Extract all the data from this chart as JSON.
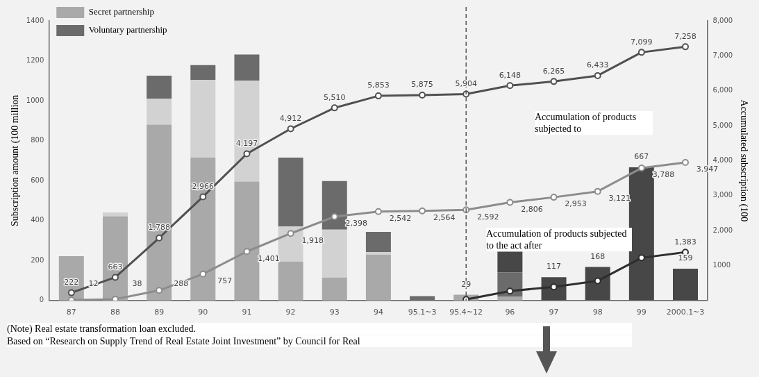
{
  "chart_data": {
    "type": "bar",
    "stacked": true,
    "marker": "circle",
    "legend": "top left",
    "ylabel": "Subscription amount (100 million",
    "y2label": "Accumulated subscription (100",
    "categories": [
      "87",
      "88",
      "89",
      "90",
      "91",
      "92",
      "93",
      "94",
      "95.1~3",
      "95.4~12",
      "96",
      "97",
      "98",
      "99",
      "2000.1~3"
    ],
    "ylim": [
      0,
      1400
    ],
    "yticks": [
      0,
      200,
      400,
      600,
      800,
      1000,
      1200,
      1400
    ],
    "y2lim": [
      0,
      8000
    ],
    "y2ticks": [
      {
        "value": 1000,
        "label": "1000"
      },
      {
        "value": 2000,
        "label": "2,000"
      },
      {
        "value": 3000,
        "label": "3,000"
      },
      {
        "value": 4000,
        "label": "4,000"
      },
      {
        "value": 5000,
        "label": "5,000"
      },
      {
        "value": 6000,
        "label": "6,000"
      },
      {
        "value": 7000,
        "label": "7,000"
      },
      {
        "value": 8000,
        "label": "8,000"
      }
    ],
    "series": [
      {
        "color": "#a9a9a9",
        "values": [
          222,
          422,
          880,
          715,
          595,
          195,
          115,
          230,
          null,
          29,
          20,
          null,
          null,
          null,
          null
        ],
        "value_labels": [
          null,
          null,
          null,
          null,
          null,
          null,
          null,
          null,
          null,
          "29",
          null,
          null,
          null,
          null,
          null
        ],
        "name": "Secret partnership"
      },
      {
        "color": "#d2d2d2",
        "values": [
          null,
          19,
          130,
          390,
          505,
          175,
          240,
          12,
          null,
          null,
          null,
          null,
          null,
          null,
          null
        ]
      },
      {
        "color": "#6b6b6b",
        "values": [
          null,
          null,
          115,
          73,
          131,
          345,
          243,
          101,
          22,
          null,
          120,
          null,
          null,
          null,
          null
        ],
        "name": "Voluntary partnership"
      },
      {
        "color": "#474747",
        "values": [
          null,
          null,
          null,
          null,
          null,
          null,
          null,
          null,
          null,
          null,
          104,
          117,
          168,
          667,
          159
        ],
        "value_labels": [
          null,
          null,
          null,
          null,
          null,
          null,
          null,
          null,
          null,
          null,
          null,
          "117",
          "168",
          "667",
          "159"
        ]
      },
      {
        "type": "line",
        "axis": "y2",
        "color": "#505050",
        "values": [
          222,
          663,
          1788,
          2966,
          4197,
          4912,
          5510,
          5853,
          5875,
          5904,
          6148,
          6265,
          6433,
          7099,
          7258
        ],
        "value_labels": [
          "222",
          "663",
          "1,788",
          "2,966",
          "4,197",
          "4,912",
          "5,510",
          "5,853",
          "5,875",
          "5,904",
          "6,148",
          "6,265",
          "6,433",
          "7,099",
          "7,258"
        ]
      },
      {
        "type": "line",
        "axis": "y2",
        "color": "#8c8c8c",
        "values": [
          12,
          38,
          288,
          757,
          1401,
          1918,
          2398,
          2542,
          2564,
          2592,
          2806,
          2953,
          3121,
          3788,
          3947
        ],
        "value_labels": [
          "12",
          "38",
          "288",
          "757",
          "1,401",
          "1,918",
          "2,398",
          "2,542",
          "2,564",
          "2,592",
          "2,806",
          "2,953",
          "3,121",
          "3,788",
          "3,947"
        ]
      },
      {
        "type": "line",
        "axis": "y2",
        "color": "#2e2e2e",
        "values": [
          null,
          null,
          null,
          null,
          null,
          null,
          null,
          null,
          null,
          30,
          270,
          390,
          560,
          1220,
          1383
        ],
        "value_labels": [
          null,
          null,
          null,
          null,
          null,
          null,
          null,
          null,
          null,
          null,
          null,
          null,
          null,
          null,
          "1,383"
        ]
      }
    ],
    "ref_lines": [
      {
        "axis": "x",
        "value": "95.4~12",
        "line_style": "dashed",
        "color": "#555555"
      }
    ],
    "annotations": [
      "Accumulation of products subjected to",
      "Accumulation of products subjected to the act after",
      "(Note) Real estate transformation loan excluded.",
      "Based on “Research on Supply Trend of Real Estate Joint Investment” by Council for Real"
    ]
  }
}
